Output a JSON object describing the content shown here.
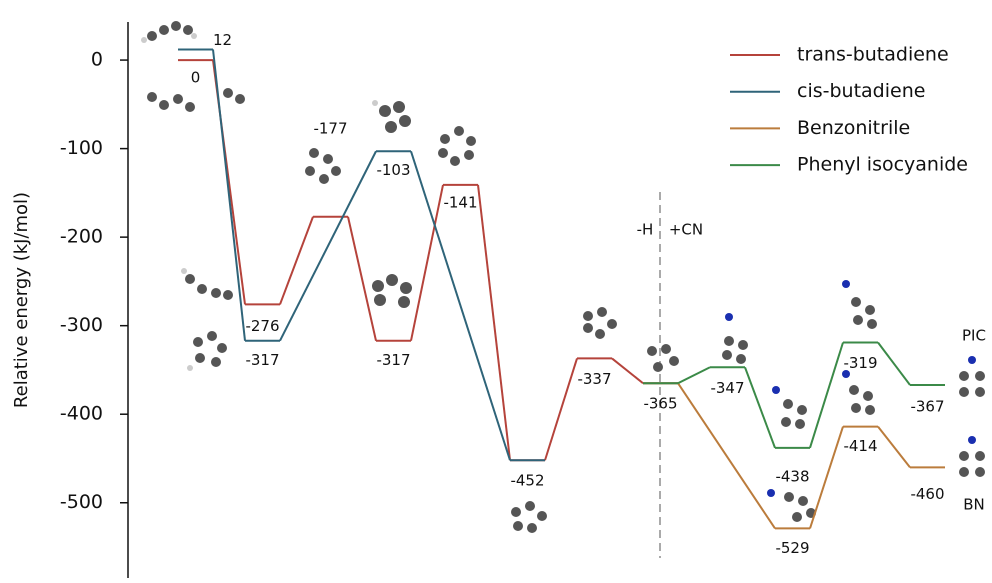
{
  "chart_data": {
    "type": "energy-profile",
    "y_label": "Relative energy (kJ/mol)",
    "categories": [
      null,
      null,
      null,
      null,
      null,
      null,
      null,
      null,
      null,
      null,
      null,
      null
    ],
    "series": [
      {
        "name": "trans-butadiene",
        "color": "#b5433b",
        "values": [
          0,
          -276,
          -177,
          -317,
          -141,
          -452,
          -337,
          -365,
          null,
          null,
          null,
          null
        ]
      },
      {
        "name": "cis-butadiene",
        "color": "#2f6479",
        "values": [
          12,
          -317,
          null,
          -103,
          null,
          -452,
          null,
          null,
          null,
          null,
          null,
          null
        ]
      },
      {
        "name": "Benzonitrile",
        "color": "#bb7c3c",
        "values": [
          null,
          null,
          null,
          null,
          null,
          null,
          null,
          -365,
          null,
          -529,
          -414,
          -460
        ]
      },
      {
        "name": "Phenyl isocyanide",
        "color": "#3b8a48",
        "values": [
          null,
          null,
          null,
          null,
          null,
          null,
          null,
          -365,
          -347,
          -438,
          -319,
          -367
        ]
      }
    ],
    "ylim": [
      -585,
      43
    ],
    "yticks": [
      0,
      -100,
      -200,
      -300,
      -400,
      -500
    ],
    "annotations": [
      "-H",
      "+CN",
      "PIC",
      "BN"
    ],
    "legend": "upper right"
  }
}
